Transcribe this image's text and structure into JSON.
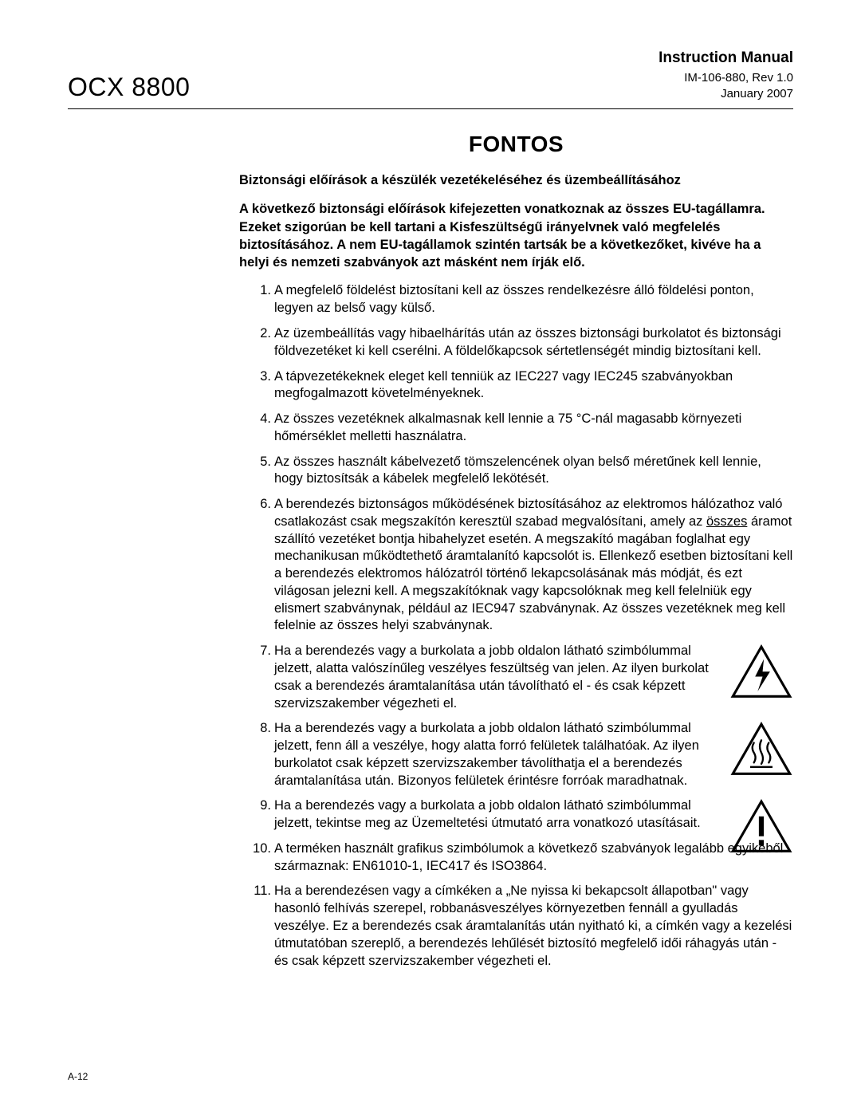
{
  "header": {
    "product": "OCX 8800",
    "doc_type": "Instruction Manual",
    "doc_id": "IM-106-880, Rev 1.0",
    "date": "January 2007"
  },
  "title": "FONTOS",
  "subtitle": "Biztonsági előírások a készülék vezetékeléséhez és üzembeállításához",
  "intro": "A következő biztonsági előírások kifejezetten vonatkoznak az összes EU-tagállamra. Ezeket szigorúan be kell tartani a Kisfeszültségű irányelvnek való megfelelés biztosításához. A nem EU-tagállamok szintén tartsák be a következőket, kivéve ha a helyi és nemzeti szabványok azt másként nem írják elő.",
  "underline_word": "összes",
  "items": [
    {
      "text": "A megfelelő földelést biztosítani kell az összes rendelkezésre álló földelési ponton, legyen az belső vagy külső.",
      "icon": null
    },
    {
      "text": "Az üzembeállítás vagy hibaelhárítás után az összes biztonsági burkolatot és biztonsági földvezetéket ki kell cserélni. A földelőkapcsok sértetlenségét mindig biztosítani kell.",
      "icon": null
    },
    {
      "text": "A tápvezetékeknek eleget kell tenniük az IEC227 vagy IEC245 szabványokban megfogalmazott követelményeknek.",
      "icon": null
    },
    {
      "text": "Az összes vezetéknek alkalmasnak kell lennie a 75 °C-nál magasabb környezeti hőmérséklet melletti használatra.",
      "icon": null
    },
    {
      "text": "Az összes használt kábelvezető tömszelencének olyan belső méretűnek kell lennie, hogy biztosítsák a kábelek megfelelő lekötését.",
      "icon": null
    },
    {
      "text_pre": "A berendezés biztonságos működésének biztosításához az elektromos hálózathoz való csatlakozást csak megszakítón keresztül szabad megvalósítani, amely az ",
      "text_post": " áramot szállító vezetéket bontja hibahelyzet esetén. A megszakító magában foglalhat egy mechanikusan működtethető áramtalanító kapcsolót is. Ellenkező esetben biztosítani kell a berendezés elektromos hálózatról történő lekapcsolásának más módját, és ezt világosan jelezni kell. A megszakítóknak vagy kapcsolóknak meg kell felelniük egy elismert szabványnak, például az IEC947 szabványnak. Az összes vezetéknek meg kell felelnie az összes helyi szabványnak.",
      "icon": null,
      "has_underline": true
    },
    {
      "text": "Ha a berendezés vagy a burkolata a jobb oldalon látható szimbólummal jelzett, alatta valószínűleg veszélyes feszültség van jelen. Az ilyen burkolat csak a berendezés áramtalanítása után távolítható el - és csak képzett szervizszakember végezheti el.",
      "icon": "voltage"
    },
    {
      "text": "Ha a berendezés vagy a burkolata a jobb oldalon látható szimbólummal jelzett, fenn áll a veszélye, hogy alatta forró felületek találhatóak. Az ilyen burkolatot csak képzett szervizszakember távolíthatja el a berendezés áramtalanítása után. Bizonyos felületek érintésre forróak maradhatnak.",
      "icon": "hot"
    },
    {
      "text": "Ha a berendezés vagy a burkolata a jobb oldalon látható szimbólummal jelzett, tekintse meg az Üzemeltetési útmutató arra vonatkozó utasításait.",
      "icon": "caution"
    },
    {
      "text": "A terméken használt grafikus szimbólumok a következő szabványok legalább egyikéből származnak: EN61010-1, IEC417 és ISO3864.",
      "icon": null
    },
    {
      "text": "Ha a berendezésen vagy a címkéken a „Ne nyissa ki bekapcsolt állapotban\" vagy hasonló felhívás szerepel, robbanásveszélyes környezetben fennáll a gyulladás veszélye. Ez a berendezés csak áramtalanítás után nyitható ki, a címkén vagy a kezelési útmutatóban szereplő, a berendezés lehűlését biztosító megfelelő idői ráhagyás után - és csak képzett szervizszakember végezheti el.",
      "icon": null
    }
  ],
  "footer": "A-12",
  "colors": {
    "text": "#000000",
    "background": "#ffffff",
    "rule": "#000000"
  },
  "fonts": {
    "body_size_pt": 12,
    "title_size_pt": 20,
    "header_product_size_pt": 24
  }
}
